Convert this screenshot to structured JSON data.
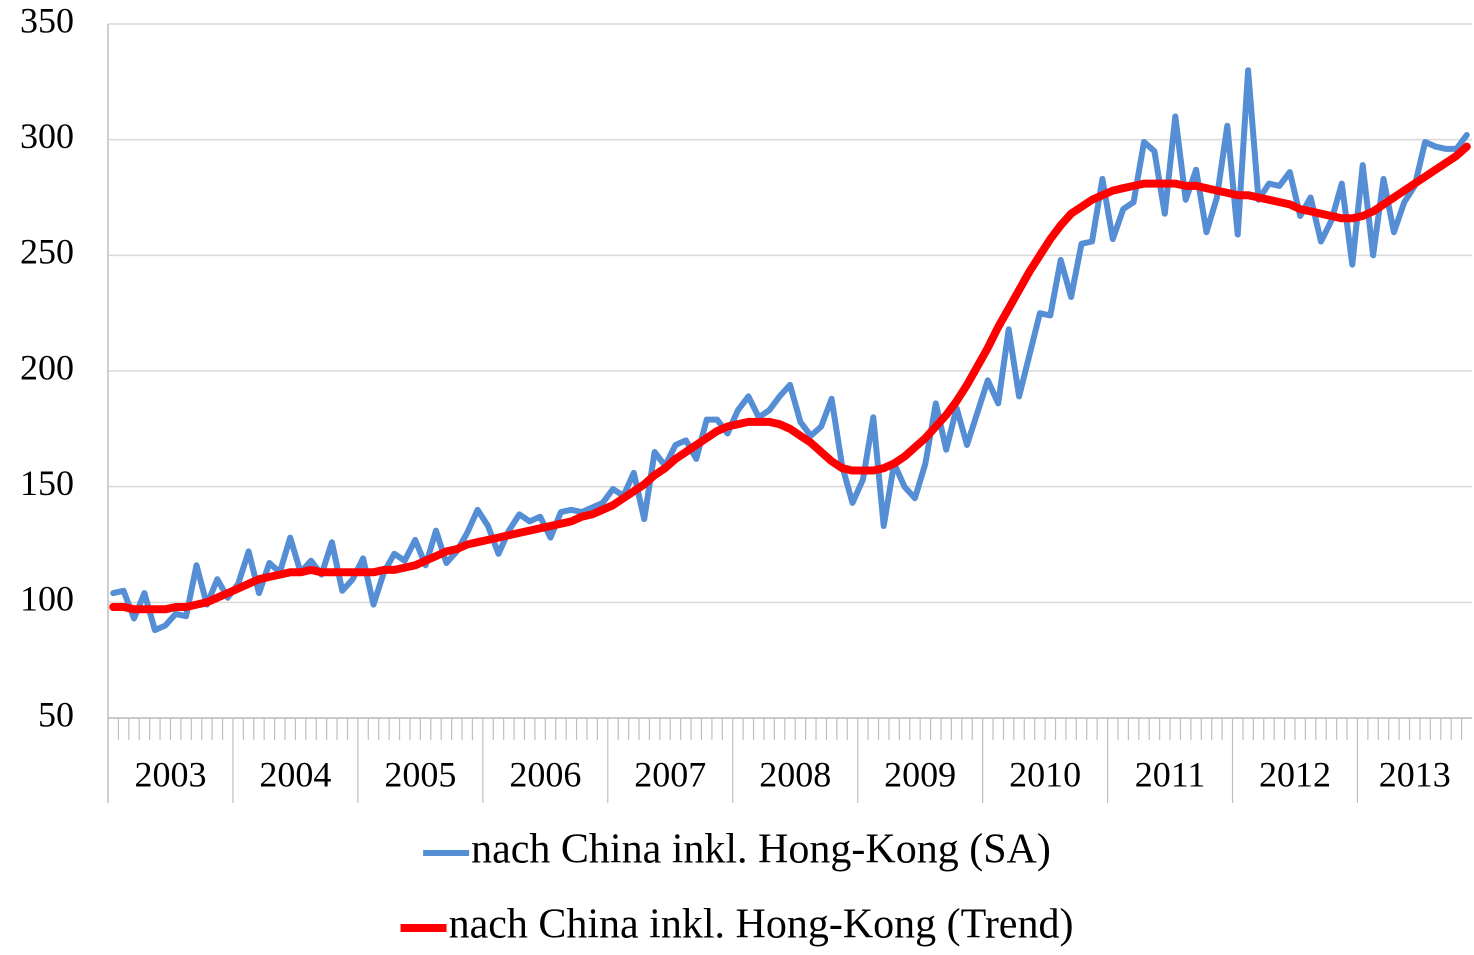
{
  "chart_data": {
    "type": "line",
    "year_groups": [
      "2003",
      "2004",
      "2005",
      "2006",
      "2007",
      "2008",
      "2009",
      "2010",
      "2011",
      "2012",
      "2013"
    ],
    "categories": [
      null,
      null,
      null,
      null,
      null,
      null,
      null,
      null,
      null,
      null,
      null,
      null,
      null,
      null,
      null,
      null,
      null,
      null,
      null,
      null,
      null,
      null,
      null,
      null,
      null,
      null,
      null,
      null,
      null,
      null,
      null,
      null,
      null,
      null,
      null,
      null,
      null,
      null,
      null,
      null,
      null,
      null,
      null,
      null,
      null,
      null,
      null,
      null,
      null,
      null,
      null,
      null,
      null,
      null,
      null,
      null,
      null,
      null,
      null,
      null,
      null,
      null,
      null,
      null,
      null,
      null,
      null,
      null,
      null,
      null,
      null,
      null,
      null,
      null,
      null,
      null,
      null,
      null,
      null,
      null,
      null,
      null,
      null,
      null,
      null,
      null,
      null,
      null,
      null,
      null,
      null,
      null,
      null,
      null,
      null,
      null,
      null,
      null,
      null,
      null,
      null,
      null,
      null,
      null,
      null,
      null,
      null,
      null,
      null,
      null,
      null,
      null,
      null,
      null,
      null,
      null,
      null,
      null,
      null,
      null,
      null,
      null,
      null,
      null,
      null,
      null,
      null,
      null,
      null,
      null,
      null
    ],
    "series": [
      {
        "name": "nach China inkl. Hong-Kong (SA)",
        "color": "#558ed5",
        "values": [
          104,
          105,
          93,
          104,
          88,
          90,
          95,
          94,
          116,
          99,
          110,
          102,
          108,
          122,
          104,
          117,
          113,
          128,
          113,
          118,
          112,
          126,
          105,
          110,
          119,
          99,
          113,
          121,
          118,
          127,
          116,
          131,
          117,
          122,
          130,
          140,
          133,
          121,
          131,
          138,
          135,
          137,
          128,
          139,
          140,
          139,
          141,
          143,
          149,
          146,
          156,
          136,
          165,
          159,
          168,
          170,
          162,
          179,
          179,
          173,
          183,
          189,
          180,
          183,
          189,
          194,
          178,
          172,
          176,
          188,
          159,
          143,
          153,
          180,
          133,
          160,
          150,
          145,
          160,
          186,
          166,
          184,
          168,
          182,
          196,
          186,
          218,
          189,
          207,
          225,
          224,
          248,
          232,
          255,
          256,
          283,
          257,
          270,
          273,
          299,
          295,
          268,
          310,
          274,
          287,
          260,
          275,
          306,
          259,
          330,
          274,
          281,
          280,
          286,
          267,
          275,
          256,
          265,
          281,
          246,
          289,
          250,
          283,
          260,
          273,
          280,
          299,
          297,
          296,
          296,
          302
        ]
      },
      {
        "name": "nach China inkl. Hong-Kong (Trend)",
        "color": "#ff0000",
        "values": [
          98,
          98,
          97,
          97,
          97,
          97,
          98,
          98,
          99,
          100,
          102,
          104,
          106,
          108,
          110,
          111,
          112,
          113,
          113,
          114,
          113,
          113,
          113,
          113,
          113,
          113,
          114,
          114,
          115,
          116,
          118,
          120,
          122,
          123,
          125,
          126,
          127,
          128,
          129,
          130,
          131,
          132,
          133,
          134,
          135,
          137,
          138,
          140,
          142,
          145,
          148,
          151,
          155,
          158,
          162,
          165,
          168,
          171,
          174,
          176,
          177,
          178,
          178,
          178,
          177,
          175,
          172,
          169,
          165,
          161,
          158,
          157,
          157,
          157,
          158,
          160,
          163,
          167,
          171,
          176,
          181,
          187,
          194,
          202,
          210,
          219,
          227,
          235,
          243,
          250,
          257,
          263,
          268,
          271,
          274,
          276,
          278,
          279,
          280,
          281,
          281,
          281,
          281,
          280,
          280,
          279,
          278,
          277,
          276,
          276,
          275,
          274,
          273,
          272,
          270,
          269,
          268,
          267,
          266,
          266,
          267,
          269,
          272,
          275,
          278,
          281,
          284,
          287,
          290,
          293,
          297
        ]
      }
    ],
    "ylim": [
      50,
      350
    ],
    "yticks": [
      50,
      100,
      150,
      200,
      250,
      300,
      350
    ],
    "grid": true,
    "legend": "bottom"
  }
}
